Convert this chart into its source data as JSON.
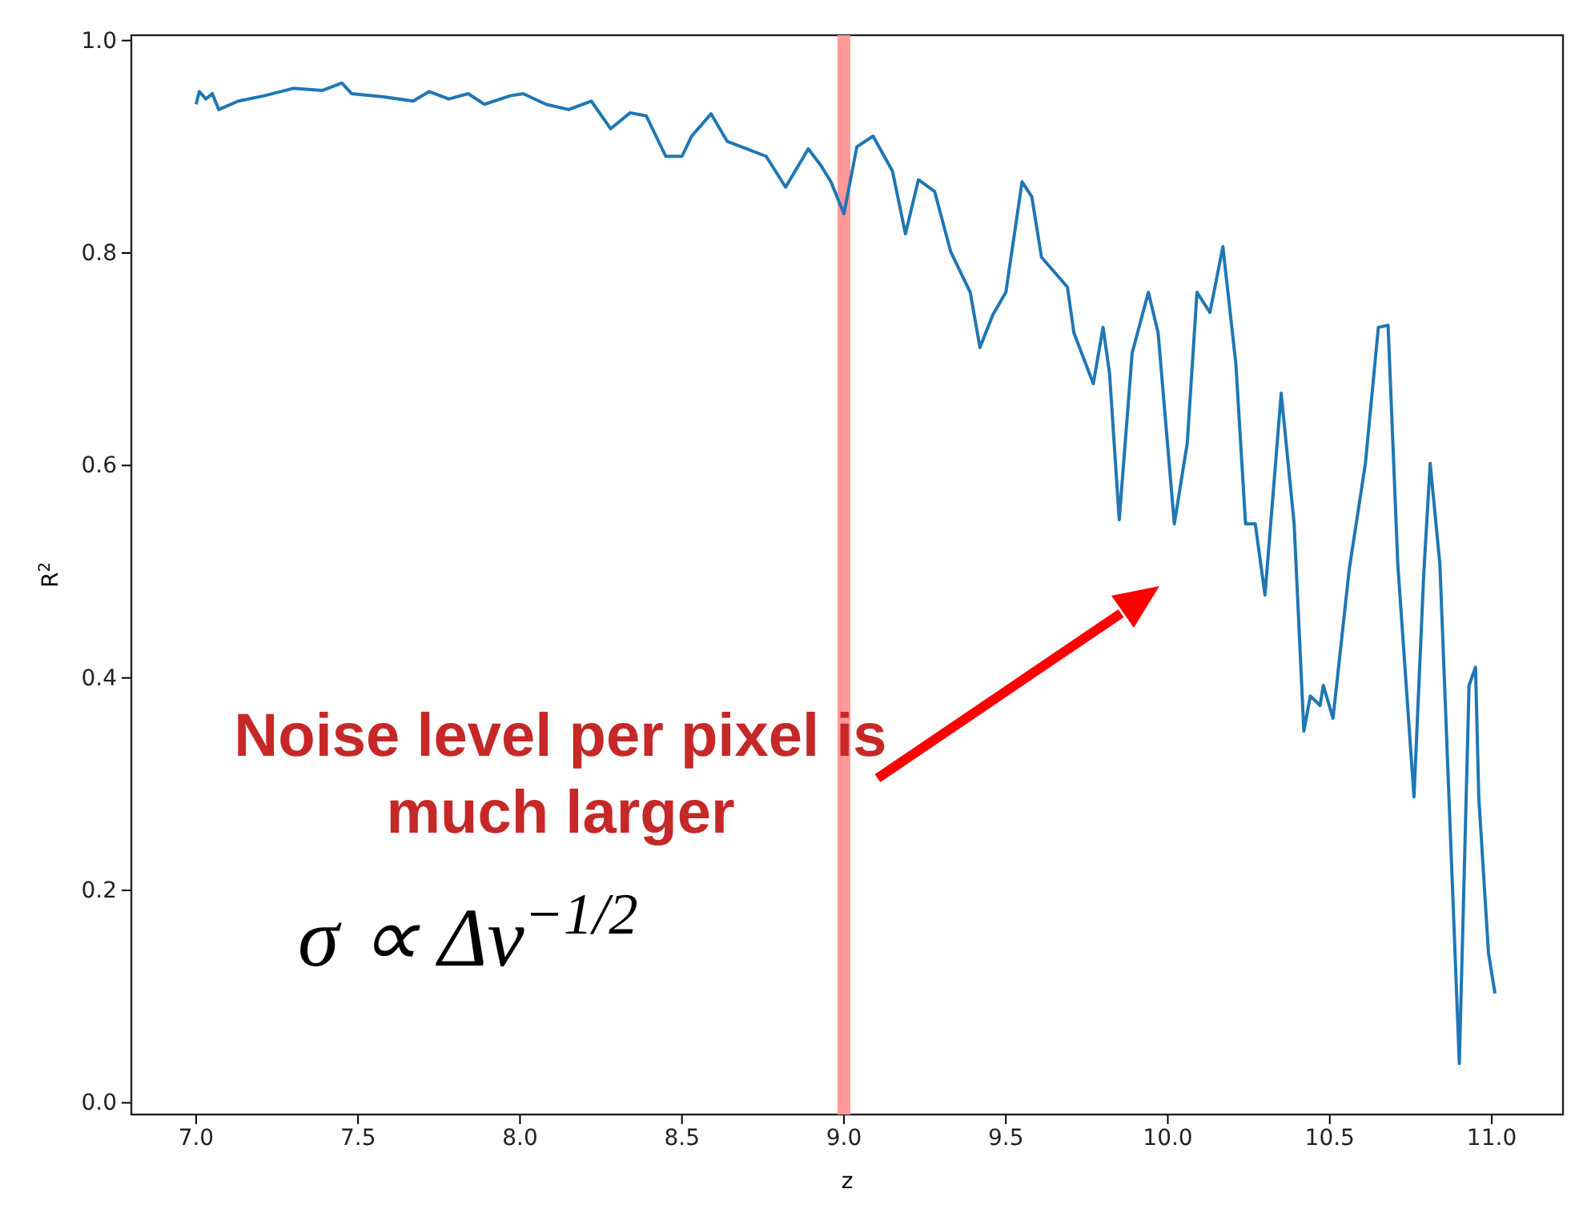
{
  "chart_data": {
    "type": "line",
    "xlabel": "z",
    "ylabel": "R$^{2}$",
    "xlim": [
      6.8,
      11.22
    ],
    "ylim": [
      -0.011,
      1.005
    ],
    "xticks": [
      {
        "value": 7,
        "label": "7.0"
      },
      {
        "value": 7.5,
        "label": "7.5"
      },
      {
        "value": 8,
        "label": "8.0"
      },
      {
        "value": 8.5,
        "label": "8.5"
      },
      {
        "value": 9,
        "label": "9.0"
      },
      {
        "value": 9.5,
        "label": "9.5"
      },
      {
        "value": 10,
        "label": "10.0"
      },
      {
        "value": 10.5,
        "label": "10.5"
      },
      {
        "value": 11,
        "label": "11.0"
      }
    ],
    "yticks": [
      {
        "value": 0,
        "label": "0.0"
      },
      {
        "value": 0.2,
        "label": "0.2"
      },
      {
        "value": 0.4,
        "label": "0.4"
      },
      {
        "value": 0.6,
        "label": "0.6"
      },
      {
        "value": 0.8,
        "label": "0.8"
      },
      {
        "value": 1,
        "label": "1.0"
      }
    ],
    "grid": false,
    "marker": "none",
    "line_style": "solid",
    "ref_lines": [
      {
        "axis": "x",
        "value": 9.0,
        "color": "#ff9999"
      }
    ],
    "annotations": [
      "Noise level per pixel is much larger",
      "σ ∝ Δν$^{−1/2}$"
    ],
    "series": [
      {
        "color": "#1f77b4",
        "x": [
          7.0,
          7.01,
          7.03,
          7.05,
          7.07,
          7.13,
          7.21,
          7.3,
          7.39,
          7.45,
          7.48,
          7.58,
          7.67,
          7.72,
          7.78,
          7.84,
          7.89,
          7.97,
          8.01,
          8.08,
          8.15,
          8.22,
          8.28,
          8.34,
          8.39,
          8.45,
          8.5,
          8.53,
          8.59,
          8.64,
          8.7,
          8.76,
          8.82,
          8.89,
          8.93,
          8.96,
          9.0,
          9.04,
          9.09,
          9.15,
          9.19,
          9.23,
          9.28,
          9.33,
          9.39,
          9.42,
          9.46,
          9.5,
          9.55,
          9.58,
          9.61,
          9.69,
          9.71,
          9.77,
          9.8,
          9.82,
          9.85,
          9.89,
          9.94,
          9.97,
          10.02,
          10.06,
          10.09,
          10.13,
          10.17,
          10.21,
          10.24,
          10.27,
          10.3,
          10.35,
          10.39,
          10.42,
          10.44,
          10.47,
          10.48,
          10.51,
          10.56,
          10.61,
          10.65,
          10.68,
          10.71,
          10.76,
          10.79,
          10.81,
          10.84,
          10.9,
          10.93,
          10.95,
          10.96,
          10.99,
          11.01
        ],
        "values": [
          0.94,
          0.952,
          0.945,
          0.95,
          0.935,
          0.943,
          0.948,
          0.955,
          0.953,
          0.96,
          0.95,
          0.947,
          0.943,
          0.952,
          0.945,
          0.95,
          0.94,
          0.948,
          0.95,
          0.94,
          0.935,
          0.943,
          0.917,
          0.932,
          0.929,
          0.891,
          0.891,
          0.91,
          0.931,
          0.905,
          0.898,
          0.891,
          0.862,
          0.898,
          0.882,
          0.867,
          0.837,
          0.9,
          0.91,
          0.877,
          0.818,
          0.869,
          0.858,
          0.801,
          0.763,
          0.711,
          0.742,
          0.763,
          0.867,
          0.853,
          0.796,
          0.768,
          0.725,
          0.677,
          0.73,
          0.687,
          0.549,
          0.706,
          0.763,
          0.725,
          0.545,
          0.621,
          0.763,
          0.744,
          0.806,
          0.696,
          0.545,
          0.545,
          0.478,
          0.668,
          0.545,
          0.35,
          0.383,
          0.374,
          0.393,
          0.362,
          0.502,
          0.602,
          0.73,
          0.732,
          0.507,
          0.288,
          0.497,
          0.602,
          0.507,
          0.037,
          0.393,
          0.41,
          0.288,
          0.141,
          0.103
        ]
      }
    ]
  }
}
